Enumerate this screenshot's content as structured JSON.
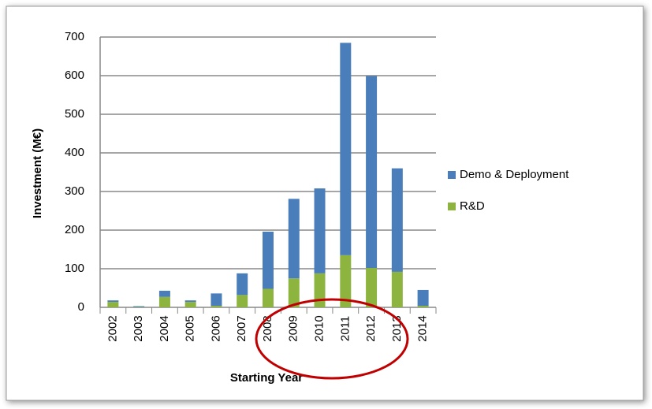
{
  "chart_data": {
    "type": "stacked-bar",
    "x_label": "Starting Year",
    "y_label": "Investment (M€)",
    "categories": [
      "2002",
      "2003",
      "2004",
      "2005",
      "2006",
      "2007",
      "2008",
      "2009",
      "2010",
      "2011",
      "2012",
      "2013",
      "2014"
    ],
    "series": [
      {
        "name": "Demo & Deployment",
        "color": "#4a7ebb",
        "values": [
          4,
          2,
          16,
          4,
          32,
          56,
          148,
          206,
          220,
          550,
          497,
          268,
          41
        ]
      },
      {
        "name": "R&D",
        "color": "#8db43e",
        "values": [
          14,
          1,
          27,
          14,
          4,
          32,
          48,
          75,
          88,
          135,
          102,
          92,
          4
        ]
      }
    ],
    "ylim": [
      0,
      700
    ],
    "yticks": [
      0,
      100,
      200,
      300,
      400,
      500,
      600,
      700
    ],
    "grid": true,
    "legend": "right"
  }
}
